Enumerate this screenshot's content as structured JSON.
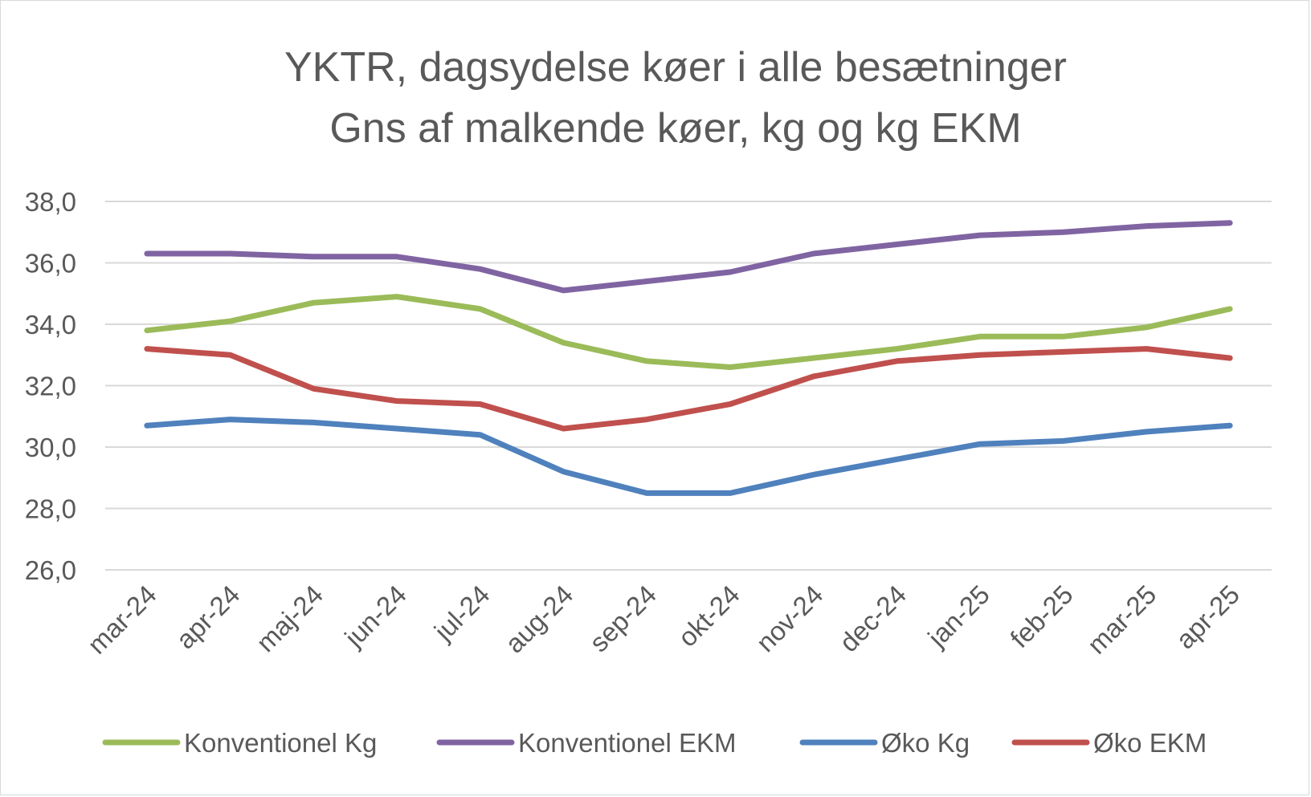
{
  "chart_data": {
    "type": "line",
    "title_lines": [
      "YKTR, dagsydelse køer i alle besætninger",
      "Gns af malkende køer, kg og kg EKM"
    ],
    "xlabel": "",
    "ylabel": "",
    "categories": [
      "mar-24",
      "apr-24",
      "maj-24",
      "jun-24",
      "jul-24",
      "aug-24",
      "sep-24",
      "okt-24",
      "nov-24",
      "dec-24",
      "jan-25",
      "feb-25",
      "mar-25",
      "apr-25"
    ],
    "y_ticks": [
      "26,0",
      "28,0",
      "30,0",
      "32,0",
      "34,0",
      "36,0",
      "38,0"
    ],
    "ylim": [
      26,
      38
    ],
    "grid": true,
    "legend_position": "bottom",
    "series": [
      {
        "name": "Konventionel Kg",
        "color": "#9bbb59",
        "values": [
          33.8,
          34.1,
          34.7,
          34.9,
          34.5,
          33.4,
          32.8,
          32.6,
          32.9,
          33.2,
          33.6,
          33.6,
          33.9,
          34.5
        ]
      },
      {
        "name": "Konventionel EKM",
        "color": "#8064a2",
        "values": [
          36.3,
          36.3,
          36.2,
          36.2,
          35.8,
          35.1,
          35.4,
          35.7,
          36.3,
          36.6,
          36.9,
          37.0,
          37.2,
          37.3
        ]
      },
      {
        "name": "Øko Kg",
        "color": "#4f81bd",
        "values": [
          30.7,
          30.9,
          30.8,
          30.6,
          30.4,
          29.2,
          28.5,
          28.5,
          29.1,
          29.6,
          30.1,
          30.2,
          30.5,
          30.7
        ]
      },
      {
        "name": "Øko EKM",
        "color": "#c0504d",
        "values": [
          33.2,
          33.0,
          31.9,
          31.5,
          31.4,
          30.6,
          30.9,
          31.4,
          32.3,
          32.8,
          33.0,
          33.1,
          33.2,
          32.9
        ]
      }
    ]
  }
}
